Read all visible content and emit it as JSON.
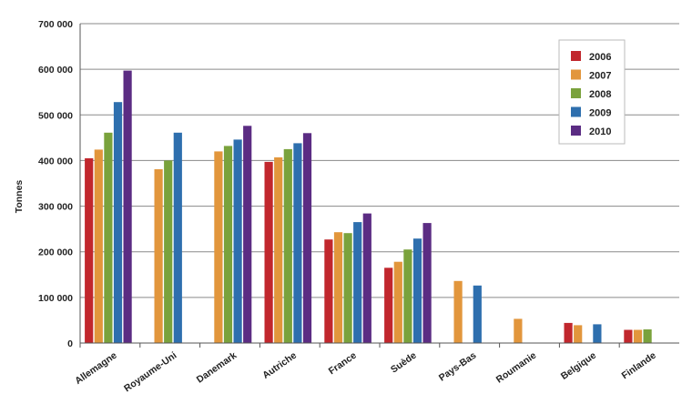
{
  "chart_data": {
    "type": "bar",
    "title": "",
    "xlabel": "",
    "ylabel": "Tonnes",
    "ylim": [
      0,
      700000
    ],
    "yticks": [
      0,
      100000,
      200000,
      300000,
      400000,
      500000,
      600000,
      700000
    ],
    "ytick_labels": [
      "0",
      "100 000",
      "200 000",
      "300 000",
      "400 000",
      "500 000",
      "600 000",
      "700 000"
    ],
    "grid": true,
    "legend_position": "top-right",
    "categories": [
      "Allemagne",
      "Royaume-Uni",
      "Danemark",
      "Autriche",
      "France",
      "Suède",
      "Pays-Bas",
      "Roumanie",
      "Belgique",
      "Finlande"
    ],
    "series": [
      {
        "name": "2006",
        "color": "#c1272d",
        "values": [
          405000,
          null,
          null,
          397000,
          227000,
          165000,
          null,
          null,
          44000,
          29000
        ]
      },
      {
        "name": "2007",
        "color": "#e2963c",
        "values": [
          424000,
          381000,
          420000,
          407000,
          243000,
          178000,
          136000,
          53000,
          39000,
          29000
        ]
      },
      {
        "name": "2008",
        "color": "#7aa23c",
        "values": [
          461000,
          400000,
          432000,
          425000,
          241000,
          205000,
          null,
          null,
          null,
          30000
        ]
      },
      {
        "name": "2009",
        "color": "#2e6fae",
        "values": [
          528000,
          461000,
          446000,
          438000,
          265000,
          229000,
          126000,
          null,
          41000,
          null
        ]
      },
      {
        "name": "2010",
        "color": "#5b2c83",
        "values": [
          597000,
          null,
          476000,
          460000,
          284000,
          263000,
          null,
          null,
          null,
          null
        ]
      }
    ]
  }
}
